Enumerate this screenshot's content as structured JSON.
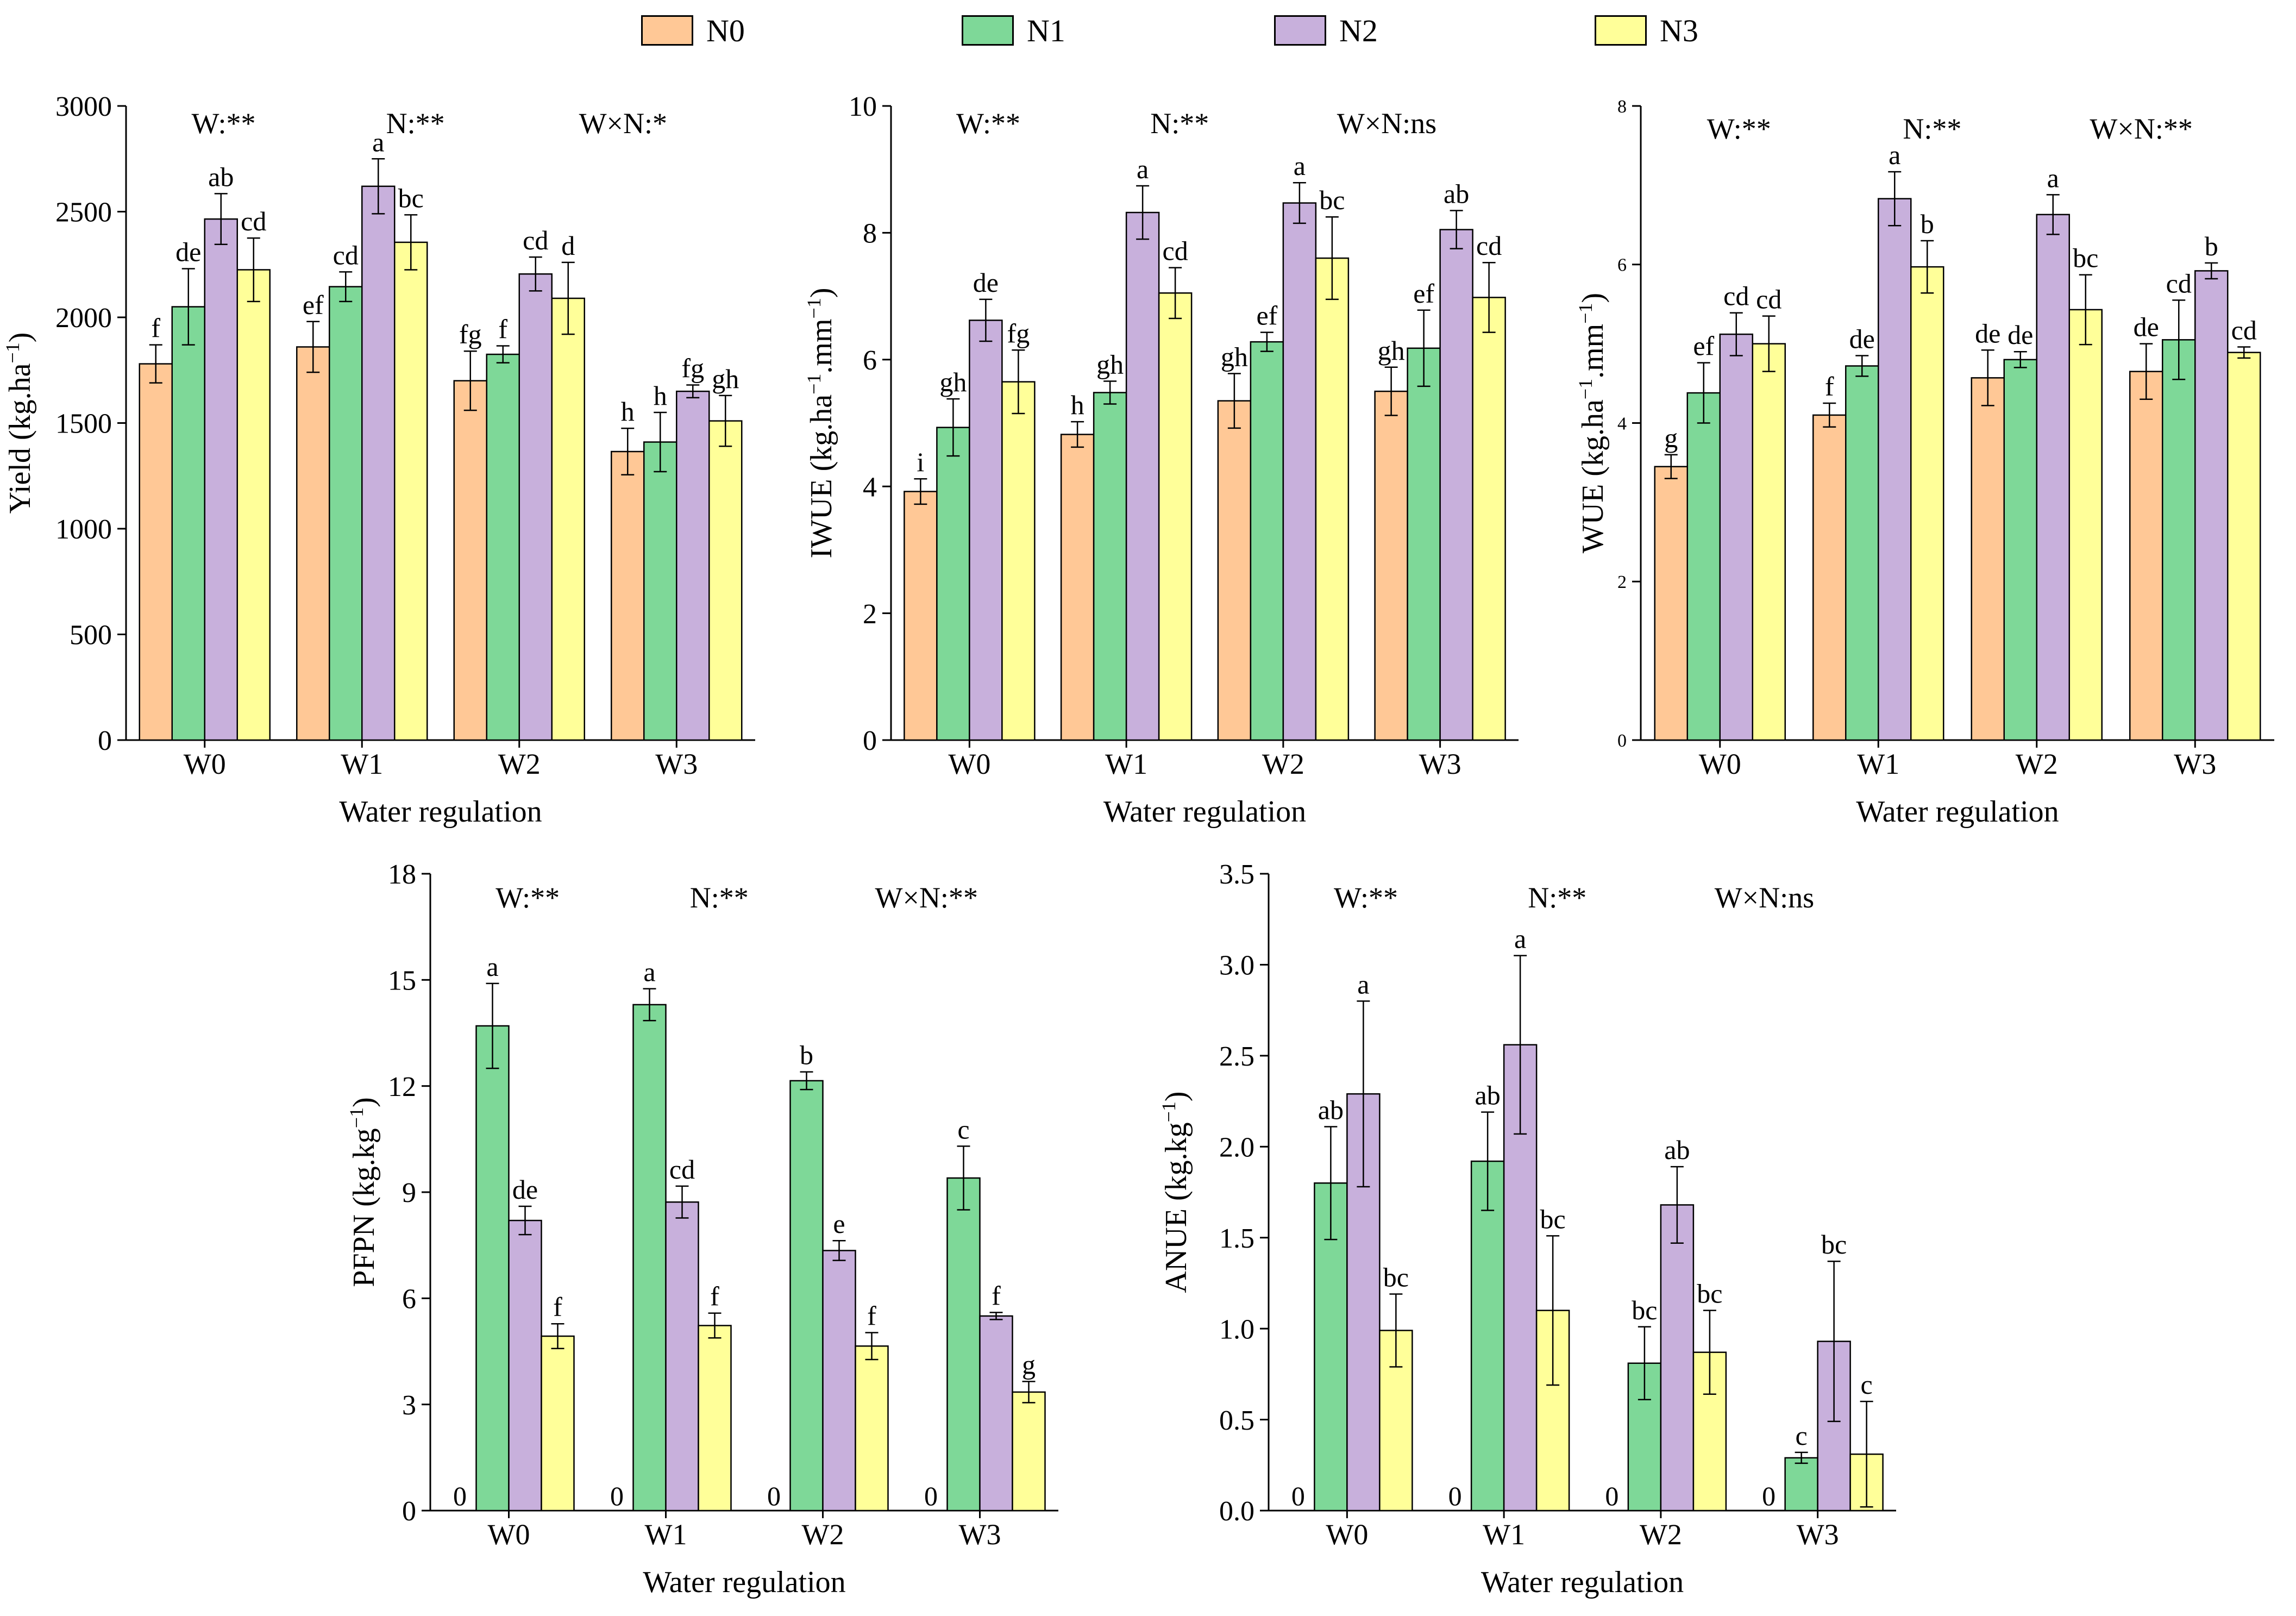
{
  "legend": [
    {
      "name": "N0",
      "color": "#FFC896"
    },
    {
      "name": "N1",
      "color": "#7ED898"
    },
    {
      "name": "N2",
      "color": "#C8B0DC"
    },
    {
      "name": "N3",
      "color": "#FFFF99"
    }
  ],
  "chart_data": [
    {
      "id": "yield",
      "type": "bar",
      "xlabel": "Water regulation",
      "ylabel_main": "Yield (kg.ha",
      "ylabel_sup": "−1",
      "ylabel_tail": ")",
      "ylim": [
        0,
        3000
      ],
      "yticks": [
        0,
        500,
        1000,
        1500,
        2000,
        2500,
        3000
      ],
      "categories": [
        "W0",
        "W1",
        "W2",
        "W3"
      ],
      "annotations": [
        "W:**",
        "N:**",
        "W×N:*"
      ],
      "series": [
        {
          "name": "N0",
          "values": [
            1780,
            1860,
            1700,
            1365
          ],
          "errors": [
            90,
            120,
            140,
            110
          ],
          "letters": [
            "f",
            "ef",
            "fg",
            "h"
          ]
        },
        {
          "name": "N1",
          "values": [
            2050,
            2145,
            1825,
            1410
          ],
          "errors": [
            180,
            70,
            40,
            140
          ],
          "letters": [
            "de",
            "cd",
            "f",
            "h"
          ]
        },
        {
          "name": "N2",
          "values": [
            2465,
            2620,
            2205,
            1650
          ],
          "errors": [
            120,
            130,
            80,
            30
          ],
          "letters": [
            "ab",
            "a",
            "cd",
            "fg"
          ]
        },
        {
          "name": "N3",
          "values": [
            2225,
            2355,
            2090,
            1510
          ],
          "errors": [
            150,
            130,
            170,
            120
          ],
          "letters": [
            "cd",
            "bc",
            "d",
            "gh"
          ]
        }
      ]
    },
    {
      "id": "iwue",
      "type": "bar",
      "xlabel": "Water regulation",
      "ylabel_main": "IWUE (kg.ha",
      "ylabel_sup": "−1",
      "ylabel_mid": ".mm",
      "ylabel_sup2": "−1",
      "ylabel_tail": ")",
      "ylim": [
        0,
        10
      ],
      "yticks": [
        0,
        2,
        4,
        6,
        8,
        10
      ],
      "categories": [
        "W0",
        "W1",
        "W2",
        "W3"
      ],
      "annotations": [
        "W:**",
        "N:**",
        "W×N:ns"
      ],
      "series": [
        {
          "name": "N0",
          "values": [
            3.92,
            4.82,
            5.35,
            5.5
          ],
          "errors": [
            0.2,
            0.2,
            0.43,
            0.38
          ],
          "letters": [
            "i",
            "h",
            "gh",
            "gh"
          ]
        },
        {
          "name": "N1",
          "values": [
            4.93,
            5.48,
            6.28,
            6.18
          ],
          "errors": [
            0.45,
            0.18,
            0.15,
            0.6
          ],
          "letters": [
            "gh",
            "gh",
            "ef",
            "ef"
          ]
        },
        {
          "name": "N2",
          "values": [
            6.62,
            8.32,
            8.47,
            8.05
          ],
          "errors": [
            0.33,
            0.42,
            0.32,
            0.3
          ],
          "letters": [
            "de",
            "a",
            "a",
            "ab"
          ]
        },
        {
          "name": "N3",
          "values": [
            5.65,
            7.05,
            7.6,
            6.98
          ],
          "errors": [
            0.5,
            0.4,
            0.65,
            0.55
          ],
          "letters": [
            "fg",
            "cd",
            "bc",
            "cd"
          ]
        }
      ]
    },
    {
      "id": "wue",
      "type": "bar",
      "xlabel": "Water regulation",
      "ylabel_main": "WUE (kg.ha",
      "ylabel_sup": "−1",
      "ylabel_mid": ".mm",
      "ylabel_sup2": "−1",
      "ylabel_tail": ")",
      "ylim": [
        0,
        8
      ],
      "yticks": [
        0,
        2,
        4,
        6,
        8
      ],
      "categories": [
        "W0",
        "W1",
        "W2",
        "W3"
      ],
      "annotations": [
        "W:**",
        "N:**",
        "W×N:**"
      ],
      "series": [
        {
          "name": "N0",
          "values": [
            3.45,
            4.1,
            4.57,
            4.65
          ],
          "errors": [
            0.15,
            0.15,
            0.35,
            0.35
          ],
          "letters": [
            "g",
            "f",
            "de",
            "de"
          ]
        },
        {
          "name": "N1",
          "values": [
            4.38,
            4.72,
            4.8,
            5.05
          ],
          "errors": [
            0.38,
            0.13,
            0.1,
            0.5
          ],
          "letters": [
            "ef",
            "de",
            "de",
            "cd"
          ]
        },
        {
          "name": "N2",
          "values": [
            5.12,
            6.83,
            6.63,
            5.92
          ],
          "errors": [
            0.27,
            0.34,
            0.25,
            0.1
          ],
          "letters": [
            "cd",
            "a",
            "a",
            "b"
          ]
        },
        {
          "name": "N3",
          "values": [
            5.0,
            5.97,
            5.43,
            4.89
          ],
          "errors": [
            0.35,
            0.33,
            0.44,
            0.07
          ],
          "letters": [
            "cd",
            "b",
            "bc",
            "cd"
          ]
        }
      ]
    },
    {
      "id": "pfpn",
      "type": "bar",
      "xlabel": "Water regulation",
      "ylabel_main": "PFPN (kg.kg",
      "ylabel_sup": "−1",
      "ylabel_tail": ")",
      "ylim": [
        0,
        18
      ],
      "yticks": [
        0,
        3,
        6,
        9,
        12,
        15,
        18
      ],
      "categories": [
        "W0",
        "W1",
        "W2",
        "W3"
      ],
      "annotations": [
        "W:**",
        "N:**",
        "W×N:**"
      ],
      "series": [
        {
          "name": "N0",
          "values": [
            0,
            0,
            0,
            0
          ],
          "errors": [
            0,
            0,
            0,
            0
          ],
          "letters": [
            "0",
            "0",
            "0",
            "0"
          ]
        },
        {
          "name": "N1",
          "values": [
            13.7,
            14.3,
            12.15,
            9.4
          ],
          "errors": [
            1.2,
            0.45,
            0.25,
            0.9
          ],
          "letters": [
            "a",
            "a",
            "b",
            "c"
          ]
        },
        {
          "name": "N2",
          "values": [
            8.2,
            8.72,
            7.35,
            5.5
          ],
          "errors": [
            0.4,
            0.45,
            0.28,
            0.1
          ],
          "letters": [
            "de",
            "cd",
            "e",
            "f"
          ]
        },
        {
          "name": "N3",
          "values": [
            4.93,
            5.23,
            4.65,
            3.35
          ],
          "errors": [
            0.35,
            0.35,
            0.38,
            0.3
          ],
          "letters": [
            "f",
            "f",
            "f",
            "g"
          ]
        }
      ]
    },
    {
      "id": "anue",
      "type": "bar",
      "xlabel": "Water regulation",
      "ylabel_main": "ANUE (kg.kg",
      "ylabel_sup": "−1",
      "ylabel_tail": ")",
      "ylim": [
        0,
        3.5
      ],
      "yticks": [
        0.0,
        0.5,
        1.0,
        1.5,
        2.0,
        2.5,
        3.0,
        3.5
      ],
      "ytick_labels": [
        "0.0",
        "0.5",
        "1.0",
        "1.5",
        "2.0",
        "2.5",
        "3.0",
        "3.5"
      ],
      "categories": [
        "W0",
        "W1",
        "W2",
        "W3"
      ],
      "annotations": [
        "W:**",
        "N:**",
        "W×N:ns"
      ],
      "series": [
        {
          "name": "N0",
          "values": [
            0,
            0,
            0,
            0
          ],
          "errors": [
            0,
            0,
            0,
            0
          ],
          "letters": [
            "0",
            "0",
            "0",
            "0"
          ]
        },
        {
          "name": "N1",
          "values": [
            1.8,
            1.92,
            0.81,
            0.29
          ],
          "errors": [
            0.31,
            0.27,
            0.2,
            0.03
          ],
          "letters": [
            "ab",
            "ab",
            "bc",
            "c"
          ]
        },
        {
          "name": "N2",
          "values": [
            2.29,
            2.56,
            1.68,
            0.93
          ],
          "errors": [
            0.51,
            0.49,
            0.21,
            0.44
          ],
          "letters": [
            "a",
            "a",
            "ab",
            "bc"
          ]
        },
        {
          "name": "N3",
          "values": [
            0.99,
            1.1,
            0.87,
            0.31
          ],
          "errors": [
            0.2,
            0.41,
            0.23,
            0.29
          ],
          "letters": [
            "bc",
            "bc",
            "bc",
            "c"
          ]
        }
      ]
    }
  ]
}
